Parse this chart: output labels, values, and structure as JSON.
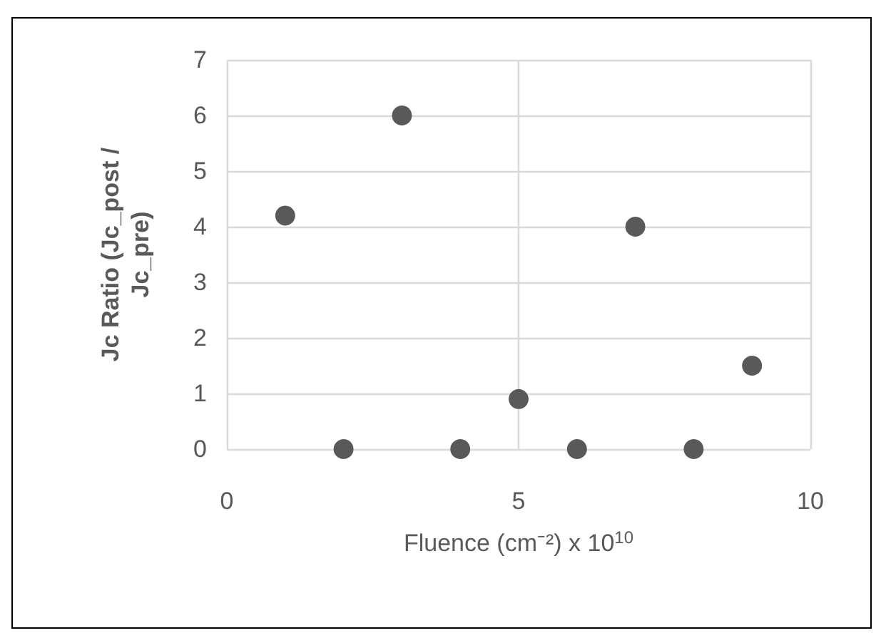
{
  "chart_data": {
    "type": "scatter",
    "xlabel": "Fluence (cm⁻²) x 10$^{10}$",
    "ylabel": "Jc Ratio (Jc_post / Jc_pre)",
    "x": [
      1,
      2,
      3,
      4,
      5,
      6,
      7,
      8,
      9
    ],
    "series": [
      {
        "color": "#595959",
        "values": [
          4.2,
          0,
          6,
          0,
          0.9,
          0,
          4,
          0,
          1.5
        ]
      }
    ],
    "xlim": [
      0,
      10
    ],
    "xticks": [
      0,
      5,
      10
    ],
    "ylim": [
      0,
      7
    ],
    "yticks": [
      0,
      1,
      2,
      3,
      4,
      5,
      6,
      7
    ],
    "grid": true,
    "marker": "circle"
  }
}
